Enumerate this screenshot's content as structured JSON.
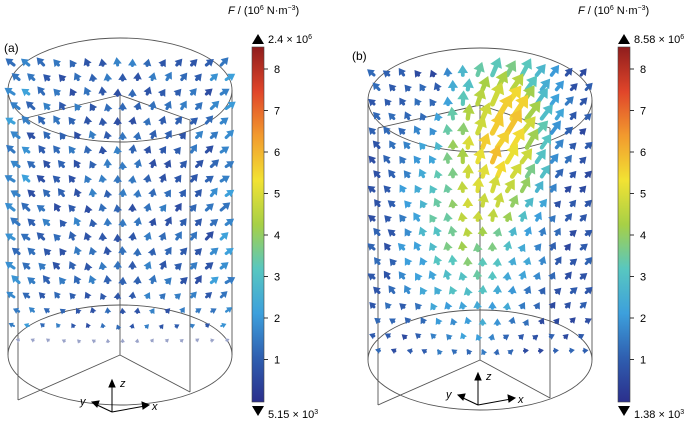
{
  "panels": [
    {
      "label": "(a)",
      "colorbar": {
        "title_italic": "F",
        "title_rest": " / (10",
        "title_exp": "6",
        "title_unit": " N·m",
        "title_unit_exp": "−3",
        "title_close": ")",
        "max_label": "2.4 × 10",
        "max_exp": "6",
        "min_label": "5.15 × 10",
        "min_exp": "3",
        "ticks": [
          "8",
          "7",
          "6",
          "5",
          "4",
          "3",
          "2",
          "1"
        ]
      },
      "axes": {
        "x": "x",
        "y": "y",
        "z": "z"
      }
    },
    {
      "label": "(b)",
      "colorbar": {
        "title_italic": "F",
        "title_rest": " / (10",
        "title_exp": "6",
        "title_unit": " N·m",
        "title_unit_exp": "−3",
        "title_close": ")",
        "max_label": "8.58 × 10",
        "max_exp": "6",
        "min_label": "1.38 × 10",
        "min_exp": "3",
        "ticks": [
          "8",
          "7",
          "6",
          "5",
          "4",
          "3",
          "2",
          "1"
        ]
      },
      "axes": {
        "x": "x",
        "y": "y",
        "z": "z"
      }
    }
  ],
  "colormap": [
    "#2b2f8c",
    "#2f5fb0",
    "#3da0dc",
    "#58c7c0",
    "#a7d046",
    "#f2e233",
    "#f29a2e",
    "#e0452a",
    "#8f1d1d"
  ]
}
